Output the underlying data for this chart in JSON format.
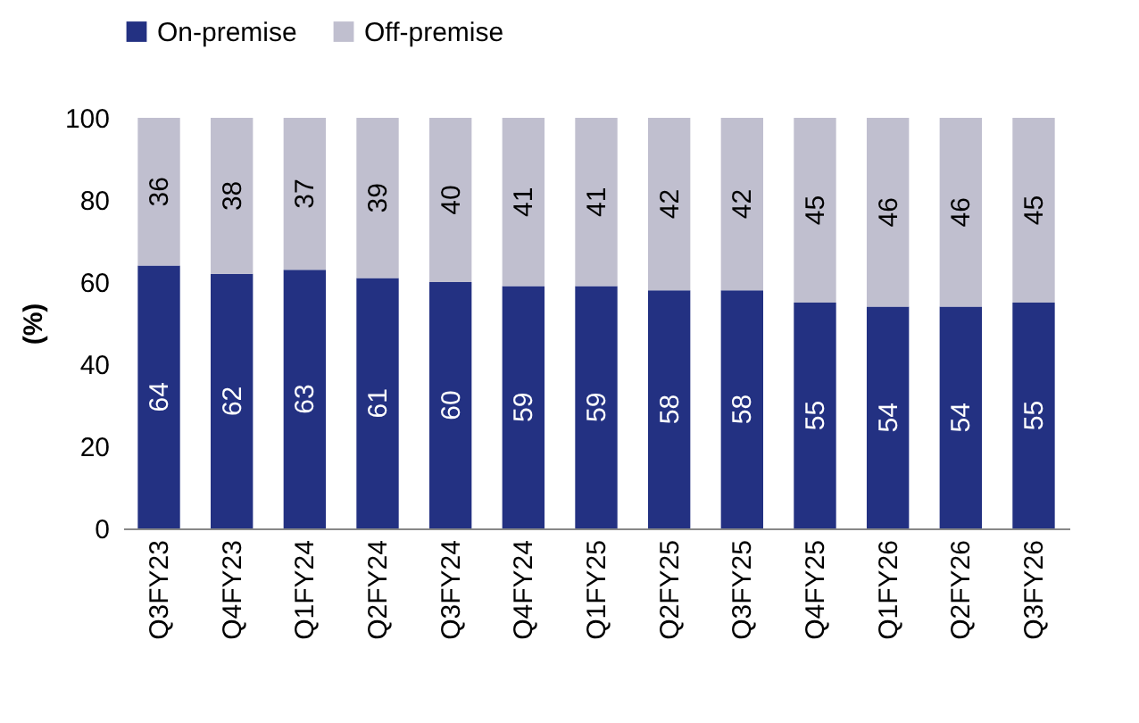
{
  "chart_data": {
    "type": "bar",
    "stacked": true,
    "ylabel": "(%)",
    "categories": [
      "Q3FY23",
      "Q4FY23",
      "Q1FY24",
      "Q2FY24",
      "Q3FY24",
      "Q4FY24",
      "Q1FY25",
      "Q2FY25",
      "Q3FY25",
      "Q4FY25",
      "Q1FY26",
      "Q2FY26",
      "Q3FY26"
    ],
    "series": [
      {
        "name": "On-premise",
        "color": "#233182",
        "values": [
          64,
          62,
          63,
          61,
          60,
          59,
          59,
          58,
          58,
          55,
          54,
          54,
          55
        ]
      },
      {
        "name": "Off-premise",
        "color": "#c0bfcf",
        "values": [
          36,
          38,
          37,
          39,
          40,
          41,
          41,
          42,
          42,
          45,
          46,
          46,
          45
        ]
      }
    ],
    "ylim": [
      0,
      100
    ],
    "yticks": [
      0,
      20,
      40,
      60,
      80,
      100
    ],
    "grid": false,
    "legend": "top",
    "data_labels": true
  }
}
